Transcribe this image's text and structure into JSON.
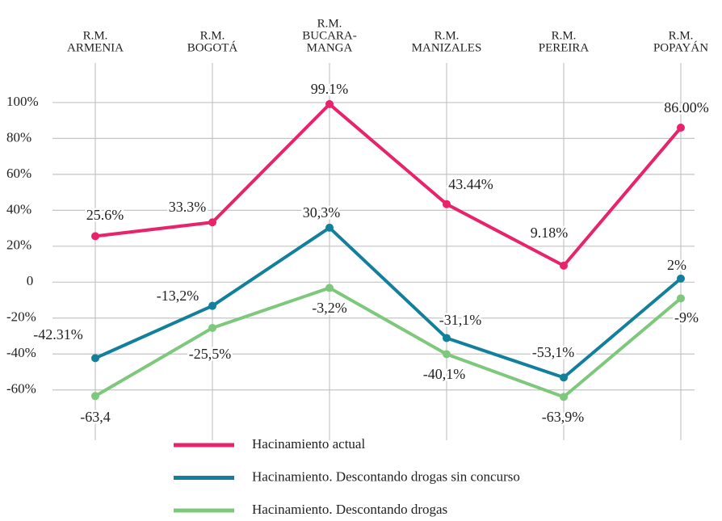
{
  "chart_data": {
    "type": "line",
    "categories": [
      [
        "R.M.",
        "ARMENIA"
      ],
      [
        "R.M.",
        "BOGOTÁ"
      ],
      [
        "R.M.",
        "BUCARA-",
        "MANGA"
      ],
      [
        "R.M.",
        "MANIZALES"
      ],
      [
        "R.M.",
        "PEREIRA"
      ],
      [
        "R.M.",
        "POPAYÁN"
      ]
    ],
    "series": [
      {
        "name": "Hacinamiento actual",
        "color": "#e8236b",
        "values": [
          25.6,
          33.3,
          99.1,
          43.44,
          9.18,
          86.0
        ],
        "value_labels": [
          "25.6%",
          "33.3%",
          "99.1%",
          "43.44%",
          "9.18%",
          "86.00%"
        ]
      },
      {
        "name": "Hacinamiento. Descontando drogas sin concurso",
        "color": "#127f9c",
        "values": [
          -42.31,
          -13.2,
          30.3,
          -31.1,
          -53.1,
          2
        ],
        "value_labels": [
          "-42.31%",
          "-13,2%",
          "30,3%",
          "-31,1%",
          "-53,1%",
          "2%"
        ]
      },
      {
        "name": "Hacinamiento. Descontando drogas",
        "color": "#7dc87a",
        "values": [
          -63.4,
          -25.5,
          -3.2,
          -40.1,
          -63.9,
          -9
        ],
        "value_labels": [
          "-63,4",
          "-25,5%",
          "-3,2%",
          "-40,1%",
          "-63,9%",
          "-9%"
        ]
      }
    ],
    "ylim": [
      -88,
      122
    ],
    "yticks": [
      {
        "value": 100,
        "label": "100%"
      },
      {
        "value": 80,
        "label": "80%"
      },
      {
        "value": 60,
        "label": "60%"
      },
      {
        "value": 40,
        "label": "40%"
      },
      {
        "value": 20,
        "label": "20%"
      },
      0,
      {
        "value": -20,
        "label": "-20%"
      },
      {
        "value": -40,
        "label": "-40%"
      },
      {
        "value": -60,
        "label": "-60%"
      }
    ],
    "grid": true
  }
}
